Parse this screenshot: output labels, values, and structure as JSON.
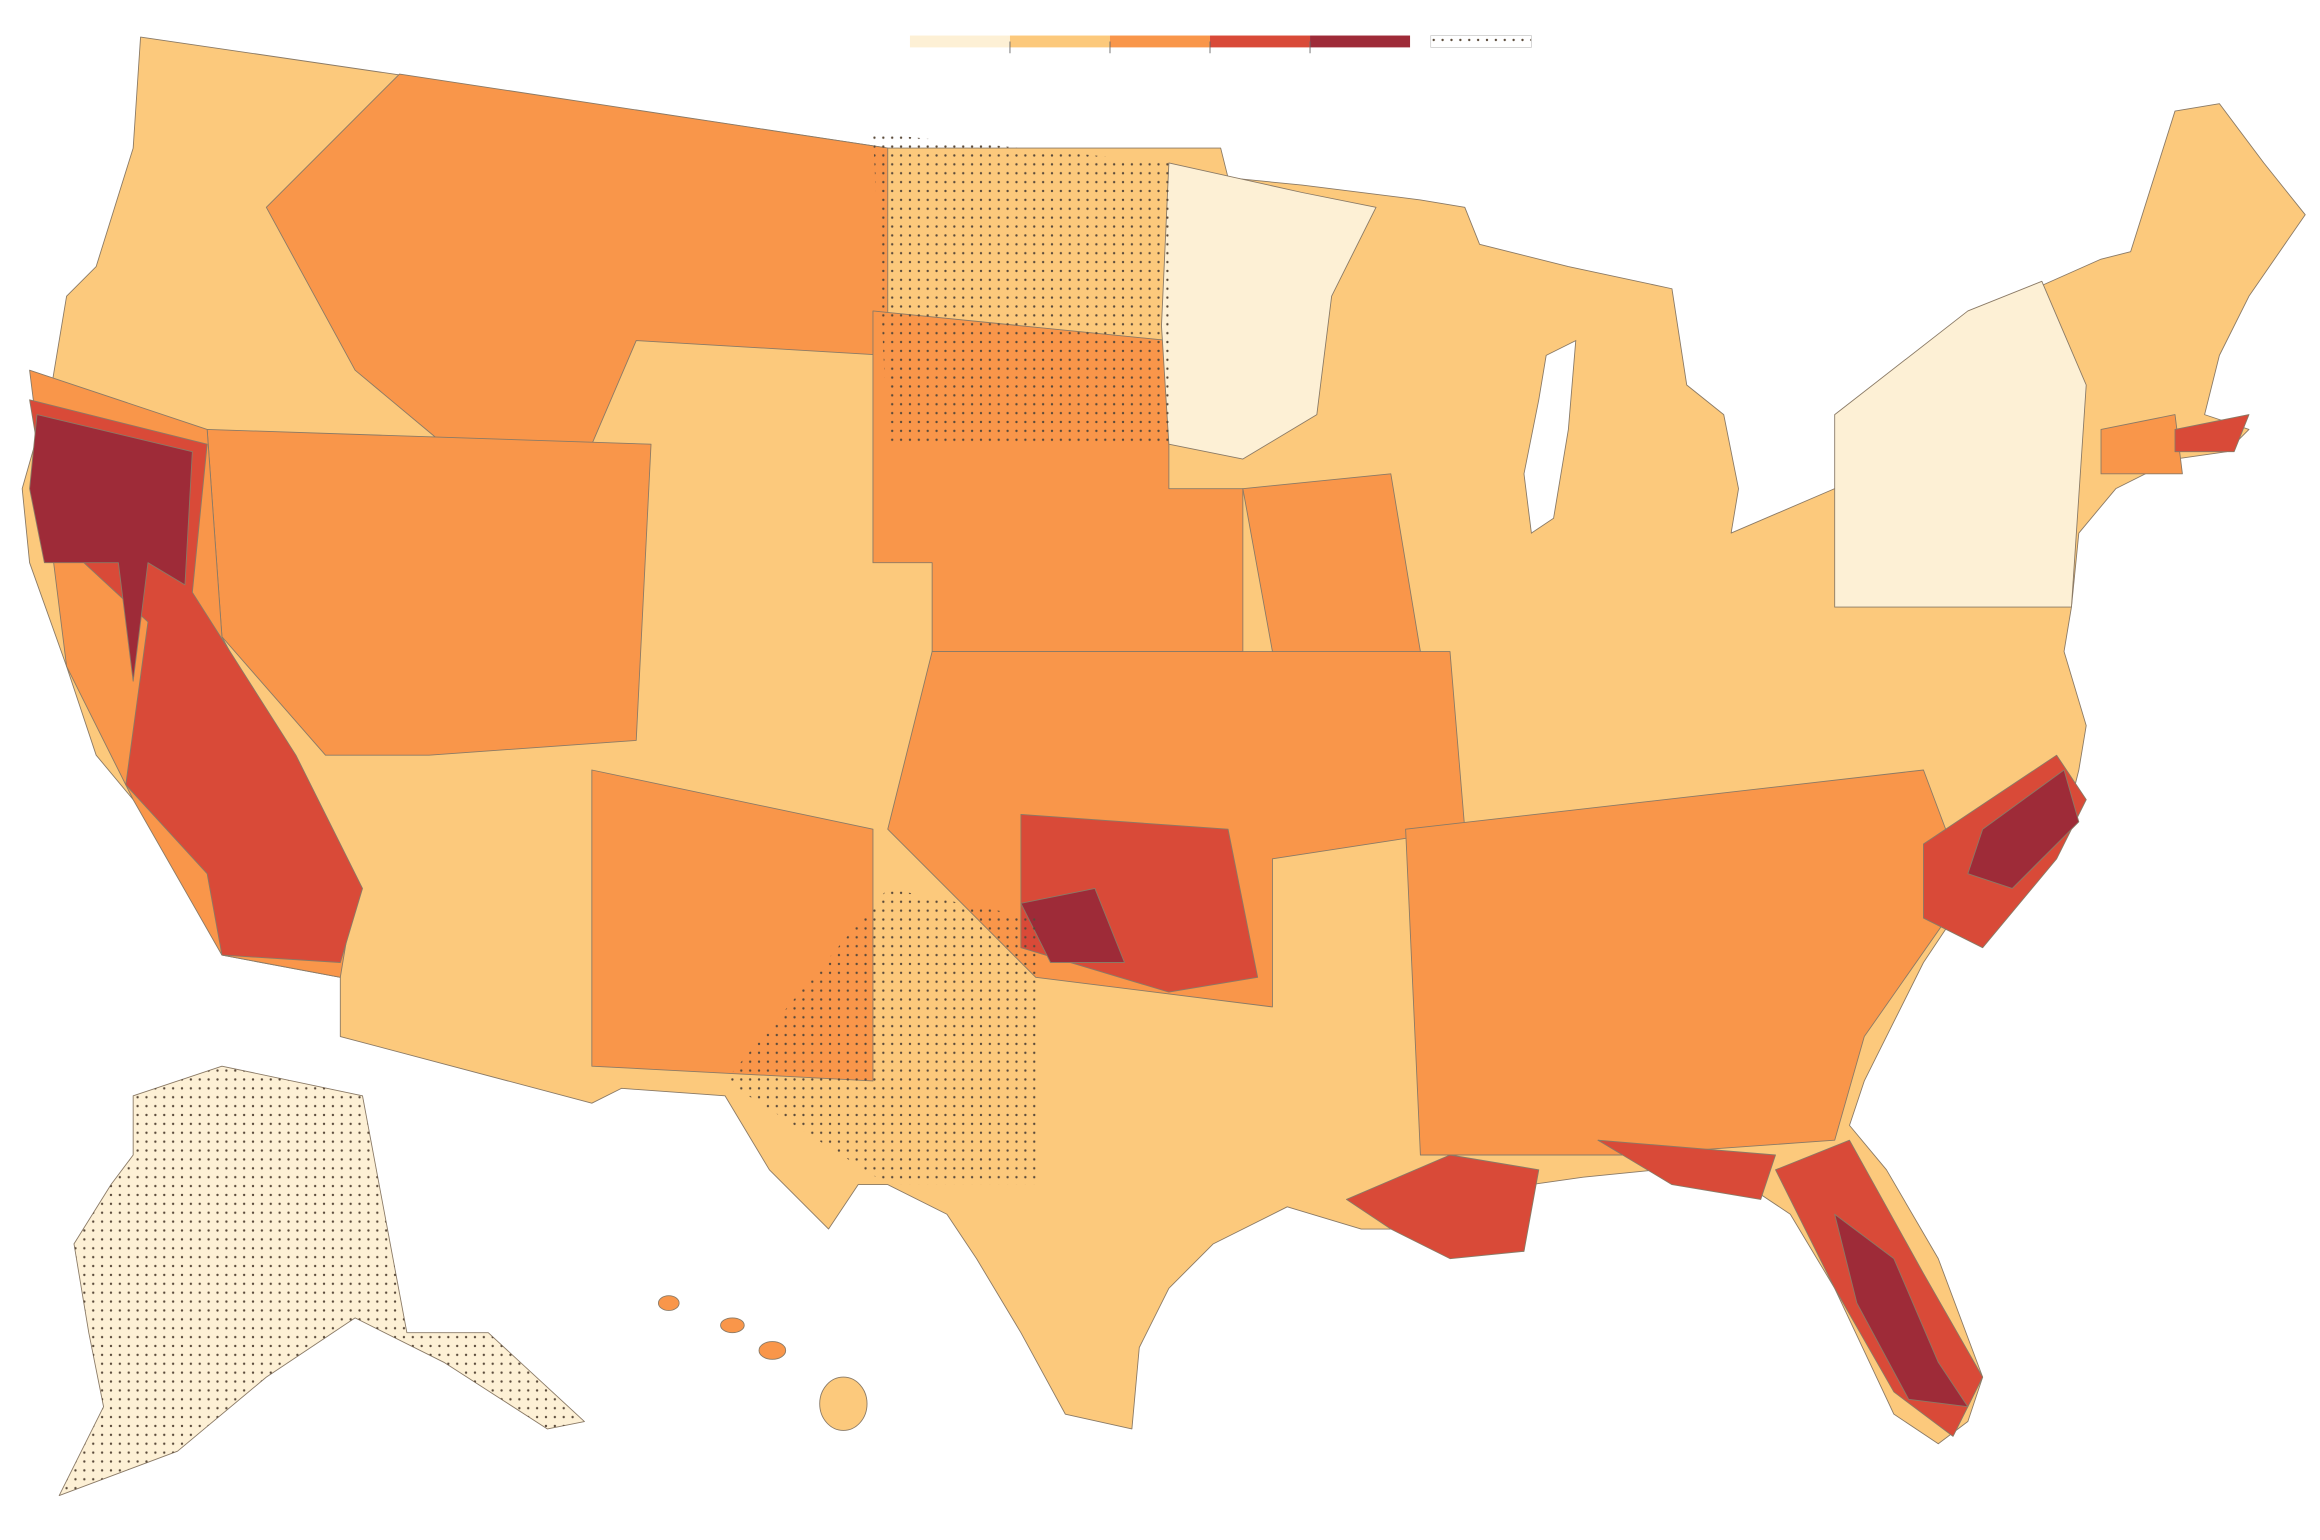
{
  "legend": {
    "colors": [
      "#fdf0d5",
      "#fcc97c",
      "#f9964a",
      "#d94a38",
      "#9e2b38"
    ]
  }
}
